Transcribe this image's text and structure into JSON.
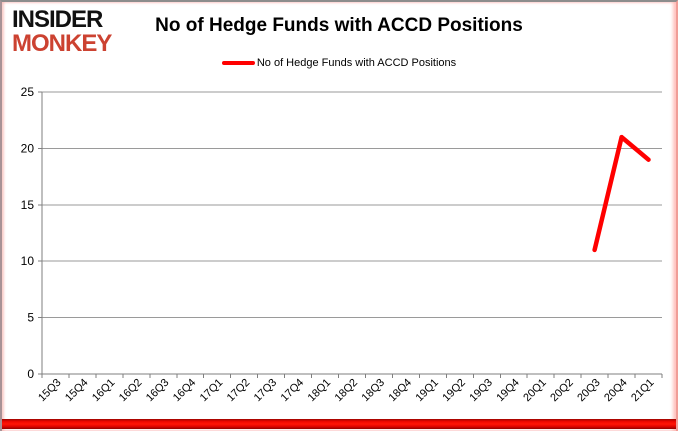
{
  "brand": {
    "line1": "INSIDER",
    "line2": "MONKEY",
    "color": "#cc4231"
  },
  "header": {
    "title": "No of Hedge Funds with ACCD Positions"
  },
  "legend": {
    "label": "No of Hedge Funds with ACCD Positions",
    "line_color": "#ff0000"
  },
  "colors": {
    "series_red": "#ff0000",
    "gridline": "#9a9a9a",
    "axis": "#7f7f7f",
    "text": "#000000"
  },
  "chart_data": {
    "type": "line",
    "title": "No of Hedge Funds with ACCD Positions",
    "categories": [
      "15Q3",
      "15Q4",
      "16Q1",
      "16Q2",
      "16Q3",
      "16Q4",
      "17Q1",
      "17Q2",
      "17Q3",
      "17Q4",
      "18Q1",
      "18Q2",
      "18Q3",
      "18Q4",
      "19Q1",
      "19Q2",
      "19Q3",
      "19Q4",
      "20Q1",
      "20Q2",
      "20Q3",
      "20Q4",
      "21Q1"
    ],
    "series": [
      {
        "name": "No of Hedge Funds with ACCD Positions",
        "color": "#ff0000",
        "values": [
          null,
          null,
          null,
          null,
          null,
          null,
          null,
          null,
          null,
          null,
          null,
          null,
          null,
          null,
          null,
          null,
          null,
          null,
          null,
          null,
          11,
          21,
          19
        ]
      }
    ],
    "xlabel": "",
    "ylabel": "",
    "ylim": [
      0,
      25
    ],
    "yticks": [
      0,
      5,
      10,
      15,
      20,
      25
    ],
    "grid": true,
    "legend_position": "top"
  }
}
